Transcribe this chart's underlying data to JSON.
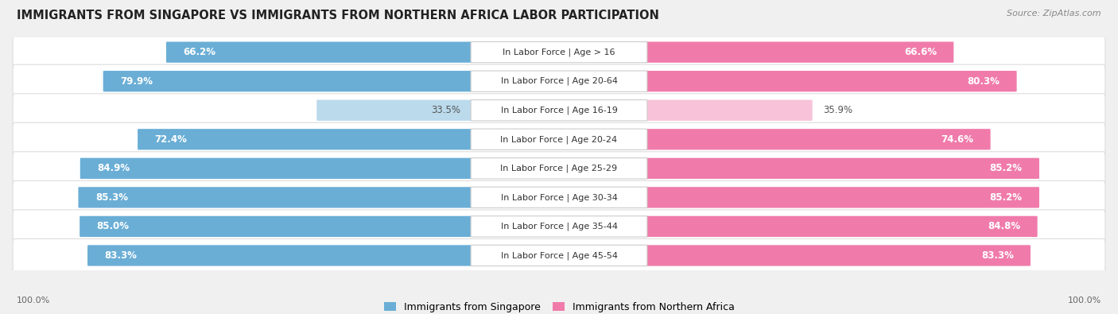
{
  "title": "IMMIGRANTS FROM SINGAPORE VS IMMIGRANTS FROM NORTHERN AFRICA LABOR PARTICIPATION",
  "source": "Source: ZipAtlas.com",
  "categories": [
    "In Labor Force | Age > 16",
    "In Labor Force | Age 20-64",
    "In Labor Force | Age 16-19",
    "In Labor Force | Age 20-24",
    "In Labor Force | Age 25-29",
    "In Labor Force | Age 30-34",
    "In Labor Force | Age 35-44",
    "In Labor Force | Age 45-54"
  ],
  "singapore_values": [
    66.2,
    79.9,
    33.5,
    72.4,
    84.9,
    85.3,
    85.0,
    83.3
  ],
  "northern_africa_values": [
    66.6,
    80.3,
    35.9,
    74.6,
    85.2,
    85.2,
    84.8,
    83.3
  ],
  "singapore_color": "#6aaed6",
  "northern_africa_color": "#f07bab",
  "singapore_label": "Immigrants from Singapore",
  "northern_africa_label": "Immigrants from Northern Africa",
  "bg_color": "#f0f0f0",
  "row_bg_color": "#ffffff",
  "row_border_color": "#dddddd",
  "center_label_bg": "#ffffff",
  "center_label_border": "#cccccc",
  "title_fontsize": 10.5,
  "bar_fontsize": 8.5,
  "label_fontsize": 8,
  "source_fontsize": 8
}
